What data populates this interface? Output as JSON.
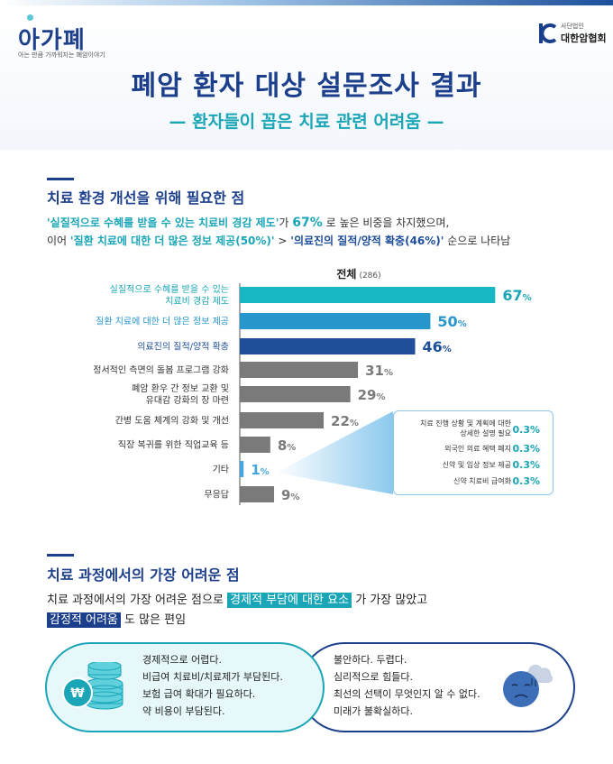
{
  "header": {
    "logo_text": "아가폐",
    "logo_sub": "아는 만큼 가까워지는 폐암이야기",
    "org_small": "사단법인",
    "org_name": "대한암협회",
    "title": "폐암 환자 대상 설문조사 결과",
    "subtitle": "— 환자들이 꼽은 치료 관련 어려움 —"
  },
  "section1": {
    "title": "치료 환경 개선을 위해 필요한 점",
    "desc1_a": "'실질적으로 수혜를 받을 수 있는 치료비 경감 제도'",
    "desc1_b": "가 ",
    "desc1_c": "67%",
    "desc1_d": " 로 높은 비중을 차지했으며,",
    "desc2_a": "이어 ",
    "desc2_b": "'질환 치료에 대한 더 많은 정보 제공(50%)'",
    "desc2_c": " > ",
    "desc2_d": "'의료진의 질적/양적 확충(46%)'",
    "desc2_e": " 순으로 나타남"
  },
  "chart_data": {
    "type": "bar",
    "orientation": "horizontal",
    "title": "전체",
    "subtitle": "(286)",
    "categories": [
      [
        "실질적으로 수혜를 받을 수 있는",
        "치료비 경감 제도"
      ],
      [
        "질환 치료에 대한 더 많은 정보 제공"
      ],
      [
        "의료진의 질적/양적 확충"
      ],
      [
        "정서적인 측면의 돌봄 프로그램 강화"
      ],
      [
        "폐암 환우 간 정보 교환 및",
        "유대감 강화의 장 마련"
      ],
      [
        "간병 도움 체계의 강화 및 개선"
      ],
      [
        "직장 복귀를 위한 직업교육 등"
      ],
      [
        "기타"
      ],
      [
        "무응답"
      ]
    ],
    "values": [
      67,
      50,
      46,
      31,
      29,
      22,
      8,
      1,
      9
    ],
    "value_unit": "%",
    "xlim": [
      0,
      70
    ],
    "colors": [
      "#17b8c4",
      "#2796cc",
      "#1f4e9a",
      "#7a7a7a",
      "#7a7a7a",
      "#7a7a7a",
      "#7a7a7a",
      "#45a6dd",
      "#7a7a7a"
    ],
    "label_colors": [
      "#1aa6b7",
      "#2796cc",
      "#1f4e9a",
      "#333333",
      "#333333",
      "#333333",
      "#333333",
      "#333333",
      "#333333"
    ],
    "value_colors": [
      "#1aa6b7",
      "#2796cc",
      "#1f4e9a",
      "#7a7a7a",
      "#7a7a7a",
      "#7a7a7a",
      "#7a7a7a",
      "#45a6dd",
      "#7a7a7a"
    ],
    "callout": {
      "source_category": "기타",
      "items": [
        {
          "label": [
            "치료 진행 상황 및 계획에 대한",
            "상세한 설명 필요"
          ],
          "value": "0.3%"
        },
        {
          "label": [
            "외국인 의료 혜택 폐지"
          ],
          "value": "0.3%"
        },
        {
          "label": [
            "신약 및 임상 정보 제공"
          ],
          "value": "0.3%"
        },
        {
          "label": [
            "신약 치료비 급여화"
          ],
          "value": "0.3%"
        }
      ]
    }
  },
  "section2": {
    "title": "치료 과정에서의 가장 어려운 점",
    "line1_a": "치료 과정에서의 가장 어려운 점으로 ",
    "line1_b": "경제적 부담에 대한 요소",
    "line1_c": " 가 가장 많았고",
    "line2_a": "감정적 어려움",
    "line2_b": " 도 많은 편임",
    "economic": [
      "경제적으로 어렵다.",
      "비급여 치료비/치료제가 부담된다.",
      "보험 급여 확대가 필요하다.",
      "약 비용이 부담된다."
    ],
    "emotional": [
      "불안하다.  두렵다.",
      "심리적으로 힘들다.",
      "최선의 선택이 무엇인지 알 수 없다.",
      "미래가 불확실하다."
    ],
    "coin_symbol": "₩"
  },
  "colors": {
    "navy": "#1c3f8c",
    "teal": "#1aa6b7"
  }
}
